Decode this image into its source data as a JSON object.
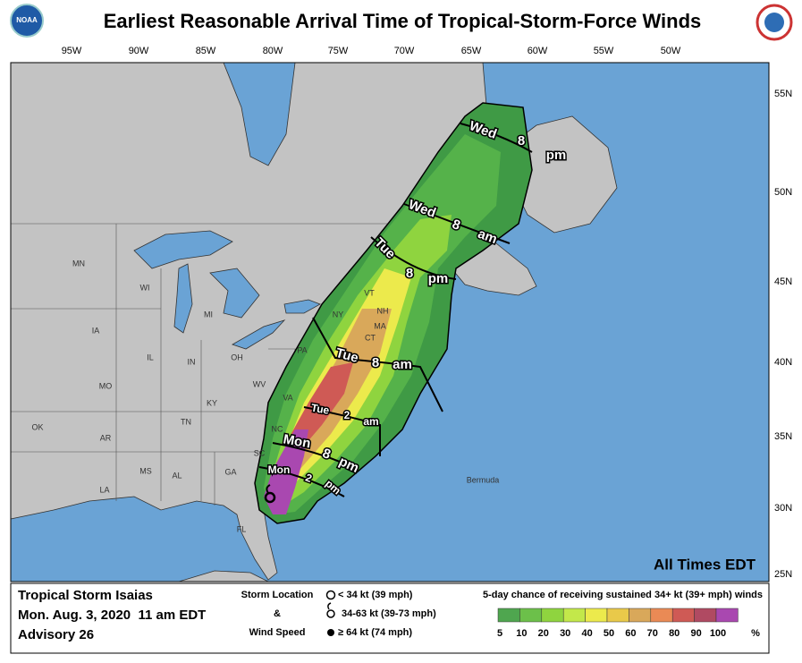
{
  "header": {
    "title": "Earliest Reasonable Arrival Time of Tropical-Storm-Force Winds",
    "logo_left": "NOAA"
  },
  "map": {
    "lon_labels": [
      "95W",
      "90W",
      "85W",
      "80W",
      "75W",
      "70W",
      "65W",
      "60W",
      "55W",
      "50W"
    ],
    "lat_labels": [
      "55N",
      "50N",
      "45N",
      "40N",
      "35N",
      "30N",
      "25N"
    ],
    "state_labels": [
      "MN",
      "WI",
      "MI",
      "IA",
      "IL",
      "IN",
      "OH",
      "MO",
      "KY",
      "WV",
      "VA",
      "NC",
      "TN",
      "OK",
      "AR",
      "SC",
      "MS",
      "AL",
      "GA",
      "LA",
      "FL",
      "PA",
      "NY",
      "VT",
      "NH",
      "MA",
      "CT"
    ],
    "time_labels": [
      [
        "Wed",
        "8",
        "pm"
      ],
      [
        "Wed",
        "8",
        "am"
      ],
      [
        "Tue",
        "8",
        "pm"
      ],
      [
        "Tue",
        "8",
        "am"
      ],
      [
        "Tue",
        "2",
        "am"
      ],
      [
        "Mon",
        "8",
        "pm"
      ],
      [
        "Mon",
        "2",
        "pm"
      ]
    ],
    "place_label": "Bermuda",
    "time_note": "All Times EDT"
  },
  "legend": {
    "storm_name": "Tropical Storm Isaias",
    "issued": "Mon. Aug. 3, 2020  11 am EDT",
    "advisory": "Advisory 26",
    "symbol_title": [
      "Storm Location",
      "&",
      "Wind Speed"
    ],
    "symbols": [
      "< 34 kt (39 mph)",
      "34-63 kt (39-73 mph)",
      "≥ 64 kt (74 mph)"
    ],
    "scale_title": "5-day chance of receiving sustained 34+ kt (39+ mph) winds",
    "scale_labels": [
      "5",
      "10",
      "20",
      "30",
      "40",
      "50",
      "60",
      "70",
      "80",
      "90",
      "100"
    ],
    "scale_unit": "%",
    "scale_colors": [
      "#4fa64f",
      "#6cc04a",
      "#8fd43f",
      "#c3e84a",
      "#ecea4c",
      "#e9c94a",
      "#d9a85a",
      "#ea8a55",
      "#cf5a55",
      "#b04a62",
      "#a948b0"
    ]
  }
}
